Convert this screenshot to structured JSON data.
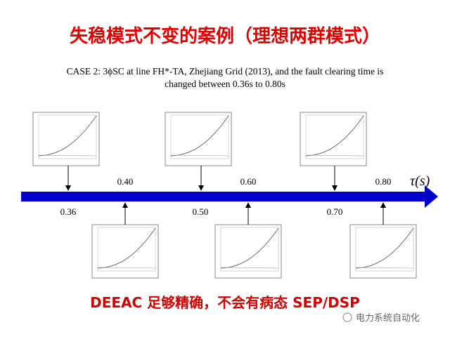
{
  "title": "失稳模式不变的案例（理想两群模式）",
  "subtitle": {
    "lines": [
      "CASE 2: 3ϕSC at line FH*-TA, Zhejiang Grid (2013), and the fault clearing time is",
      "changed between 0.36s to 0.80s"
    ]
  },
  "timeline": {
    "axis_label": "τ(s)",
    "above": [
      "0.40",
      "0.60",
      "0.80"
    ],
    "below": [
      "0.36",
      "0.50",
      "0.70"
    ]
  },
  "conclusion": "DEEAC 足够精确，不会有病态 SEP/DSP",
  "watermark": "电力系统自动化"
}
